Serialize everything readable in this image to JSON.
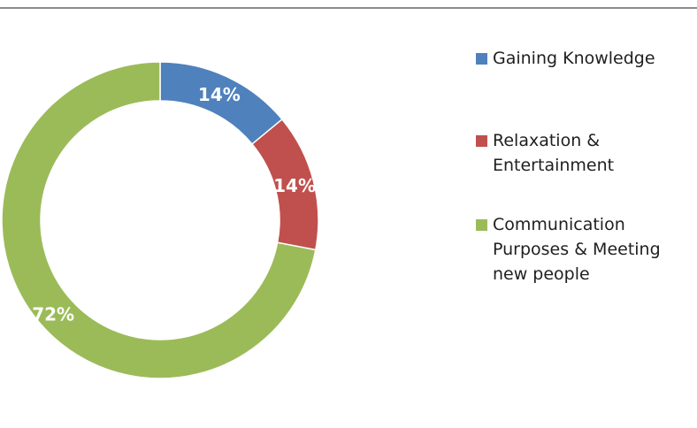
{
  "chart_data": {
    "type": "pie",
    "variant": "doughnut",
    "title": "",
    "slices": [
      {
        "label": "Gaining Knowledge",
        "value": 14,
        "display": "14%",
        "color": "#4f81bd"
      },
      {
        "label": "Relaxation & Entertainment",
        "value": 14,
        "display": "14%",
        "color": "#c0504d"
      },
      {
        "label": "Communication Purposes & Meeting new people",
        "value": 72,
        "display": "72%",
        "color": "#9bbb59"
      }
    ],
    "legend": {
      "placement": "right",
      "items": [
        {
          "lines": [
            "Gaining Knowledge"
          ],
          "color": "#4f81bd"
        },
        {
          "lines": [
            "Relaxation &",
            "Entertainment"
          ],
          "color": "#c0504d"
        },
        {
          "lines": [
            "Communication",
            "Purposes & Meeting",
            "new people"
          ],
          "color": "#9bbb59"
        }
      ]
    }
  }
}
